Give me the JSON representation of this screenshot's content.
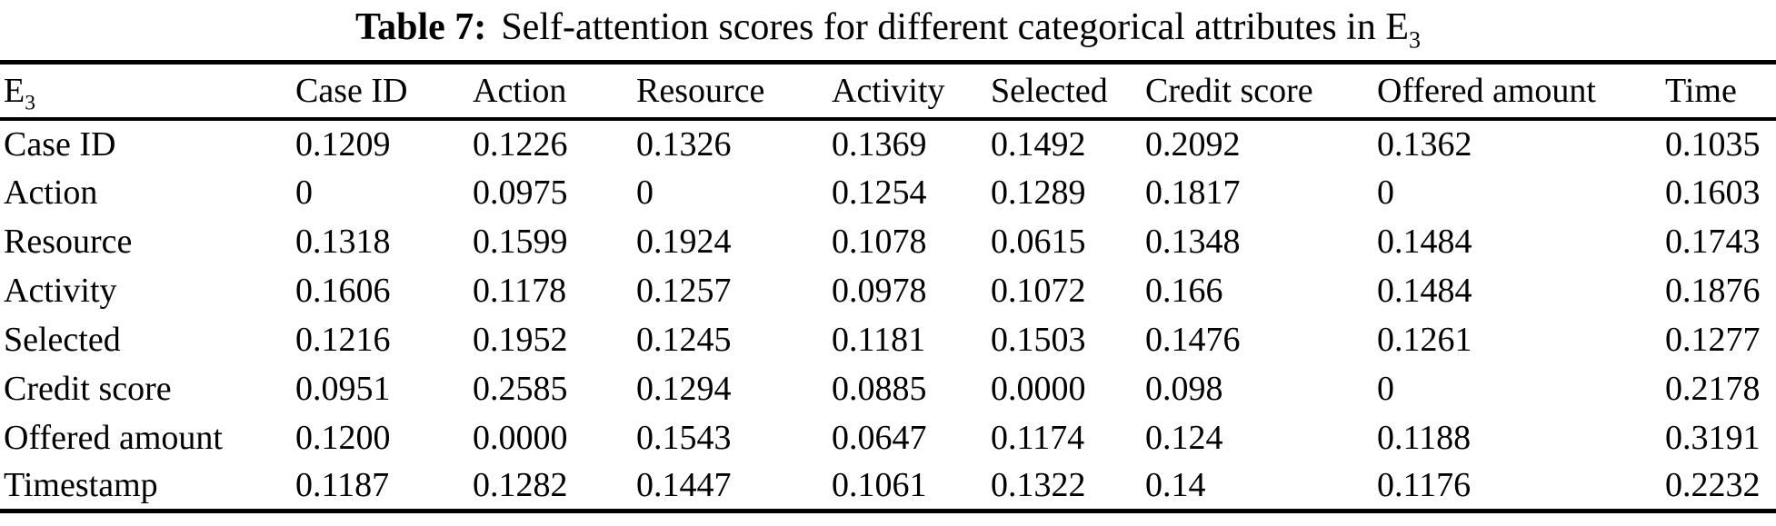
{
  "caption": {
    "label": "Table 7:",
    "text": "Self-attention scores for different categorical attributes in E",
    "subscript": "3"
  },
  "chart_data": {
    "type": "table",
    "corner_header": {
      "base": "E",
      "sub": "3"
    },
    "columns": [
      "Case ID",
      "Action",
      "Resource",
      "Activity",
      "Selected",
      "Credit score",
      "Offered amount",
      "Time"
    ],
    "rows": [
      {
        "label": "Case ID",
        "values": [
          "0.1209",
          "0.1226",
          "0.1326",
          "0.1369",
          "0.1492",
          "0.2092",
          "0.1362",
          "0.1035"
        ]
      },
      {
        "label": "Action",
        "values": [
          "0",
          "0.0975",
          "0",
          "0.1254",
          "0.1289",
          "0.1817",
          "0",
          "0.1603"
        ]
      },
      {
        "label": "Resource",
        "values": [
          "0.1318",
          "0.1599",
          "0.1924",
          "0.1078",
          "0.0615",
          "0.1348",
          "0.1484",
          "0.1743"
        ]
      },
      {
        "label": "Activity",
        "values": [
          "0.1606",
          "0.1178",
          "0.1257",
          "0.0978",
          "0.1072",
          "0.166",
          "0.1484",
          "0.1876"
        ]
      },
      {
        "label": "Selected",
        "values": [
          "0.1216",
          "0.1952",
          "0.1245",
          "0.1181",
          "0.1503",
          "0.1476",
          "0.1261",
          "0.1277"
        ]
      },
      {
        "label": "Credit score",
        "values": [
          "0.0951",
          "0.2585",
          "0.1294",
          "0.0885",
          "0.0000",
          "0.098",
          "0",
          "0.2178"
        ]
      },
      {
        "label": "Offered amount",
        "values": [
          "0.1200",
          "0.0000",
          "0.1543",
          "0.0647",
          "0.1174",
          "0.124",
          "0.1188",
          "0.3191"
        ]
      },
      {
        "label": "Timestamp",
        "values": [
          "0.1187",
          "0.1282",
          "0.1447",
          "0.1061",
          "0.1322",
          "0.14",
          "0.1176",
          "0.2232"
        ]
      }
    ]
  },
  "colors": {
    "text": "#000000",
    "background": "#ffffff",
    "rule": "#000000"
  }
}
